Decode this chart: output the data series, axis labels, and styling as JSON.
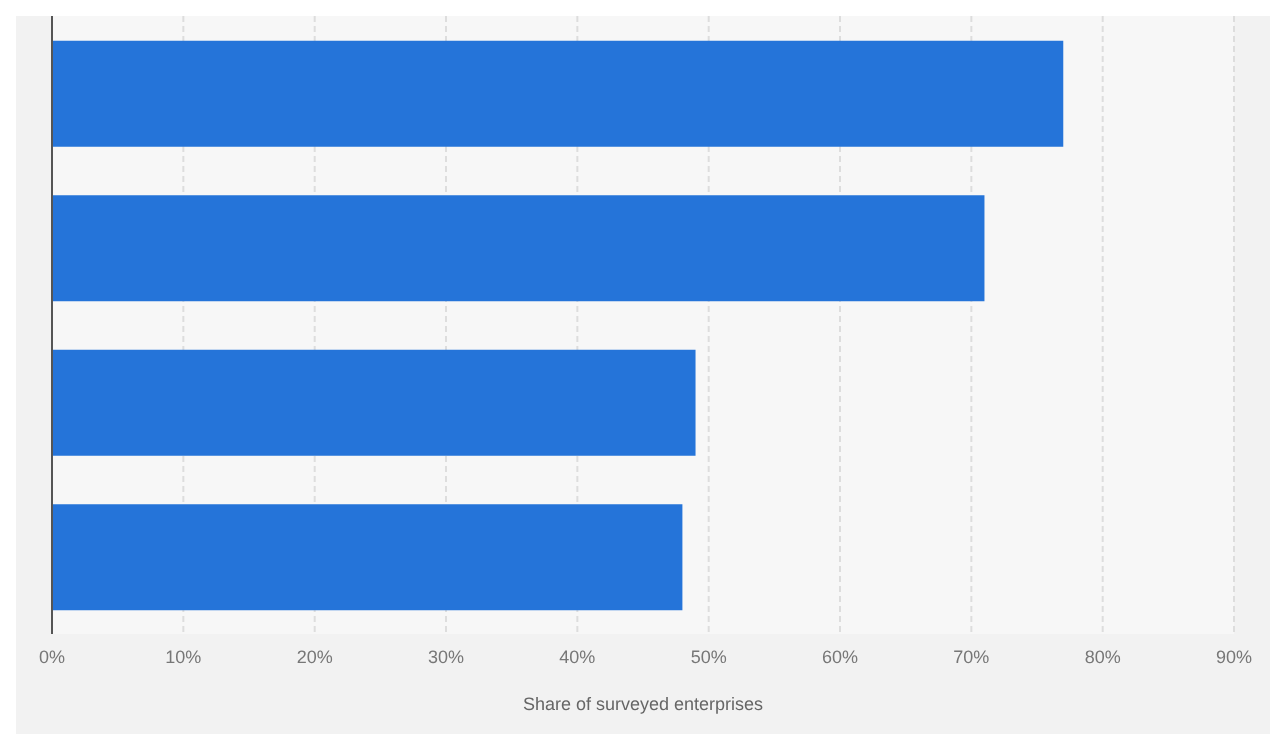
{
  "chart_data": {
    "type": "bar",
    "orientation": "horizontal",
    "categories": [
      null,
      null,
      null,
      null
    ],
    "values": [
      77,
      71,
      49,
      48
    ],
    "color": "#2574d9",
    "xlabel": "Share of surveyed enterprises",
    "xlim": [
      0,
      90
    ],
    "xticks": [
      {
        "value": 0,
        "label": "0%"
      },
      {
        "value": 10,
        "label": "10%"
      },
      {
        "value": 20,
        "label": "20%"
      },
      {
        "value": 30,
        "label": "30%"
      },
      {
        "value": 40,
        "label": "40%"
      },
      {
        "value": 50,
        "label": "50%"
      },
      {
        "value": 60,
        "label": "60%"
      },
      {
        "value": 70,
        "label": "70%"
      },
      {
        "value": 80,
        "label": "80%"
      },
      {
        "value": 90,
        "label": "90%"
      }
    ],
    "grid": "x"
  }
}
